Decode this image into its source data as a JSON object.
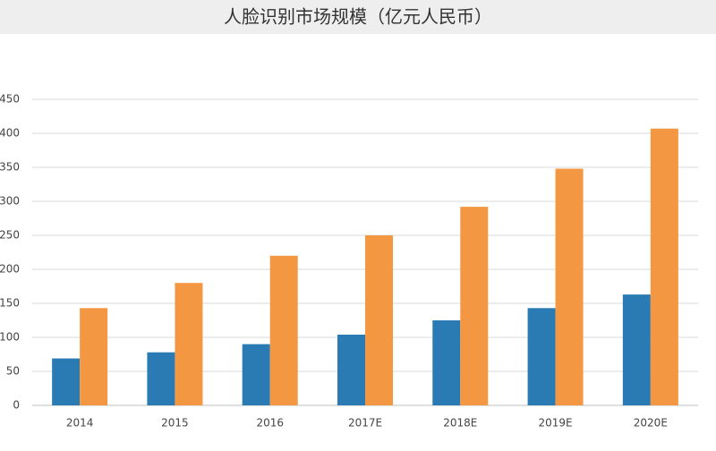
{
  "chart_data": {
    "type": "bar",
    "title": "人脸识别市场规模（亿元人民币）",
    "categories": [
      "2014",
      "2015",
      "2016",
      "2017E",
      "2018E",
      "2019E",
      "2020E"
    ],
    "series": [
      {
        "color": "#2a7ab4",
        "values": [
          69,
          78,
          90,
          104,
          125,
          143,
          163
        ]
      },
      {
        "color": "#f39743",
        "values": [
          143,
          180,
          220,
          250,
          292,
          348,
          407
        ]
      }
    ],
    "ylim": [
      0,
      450
    ],
    "yticks": [
      0,
      50,
      100,
      150,
      200,
      250,
      300,
      350,
      400,
      450
    ],
    "grid": true
  }
}
